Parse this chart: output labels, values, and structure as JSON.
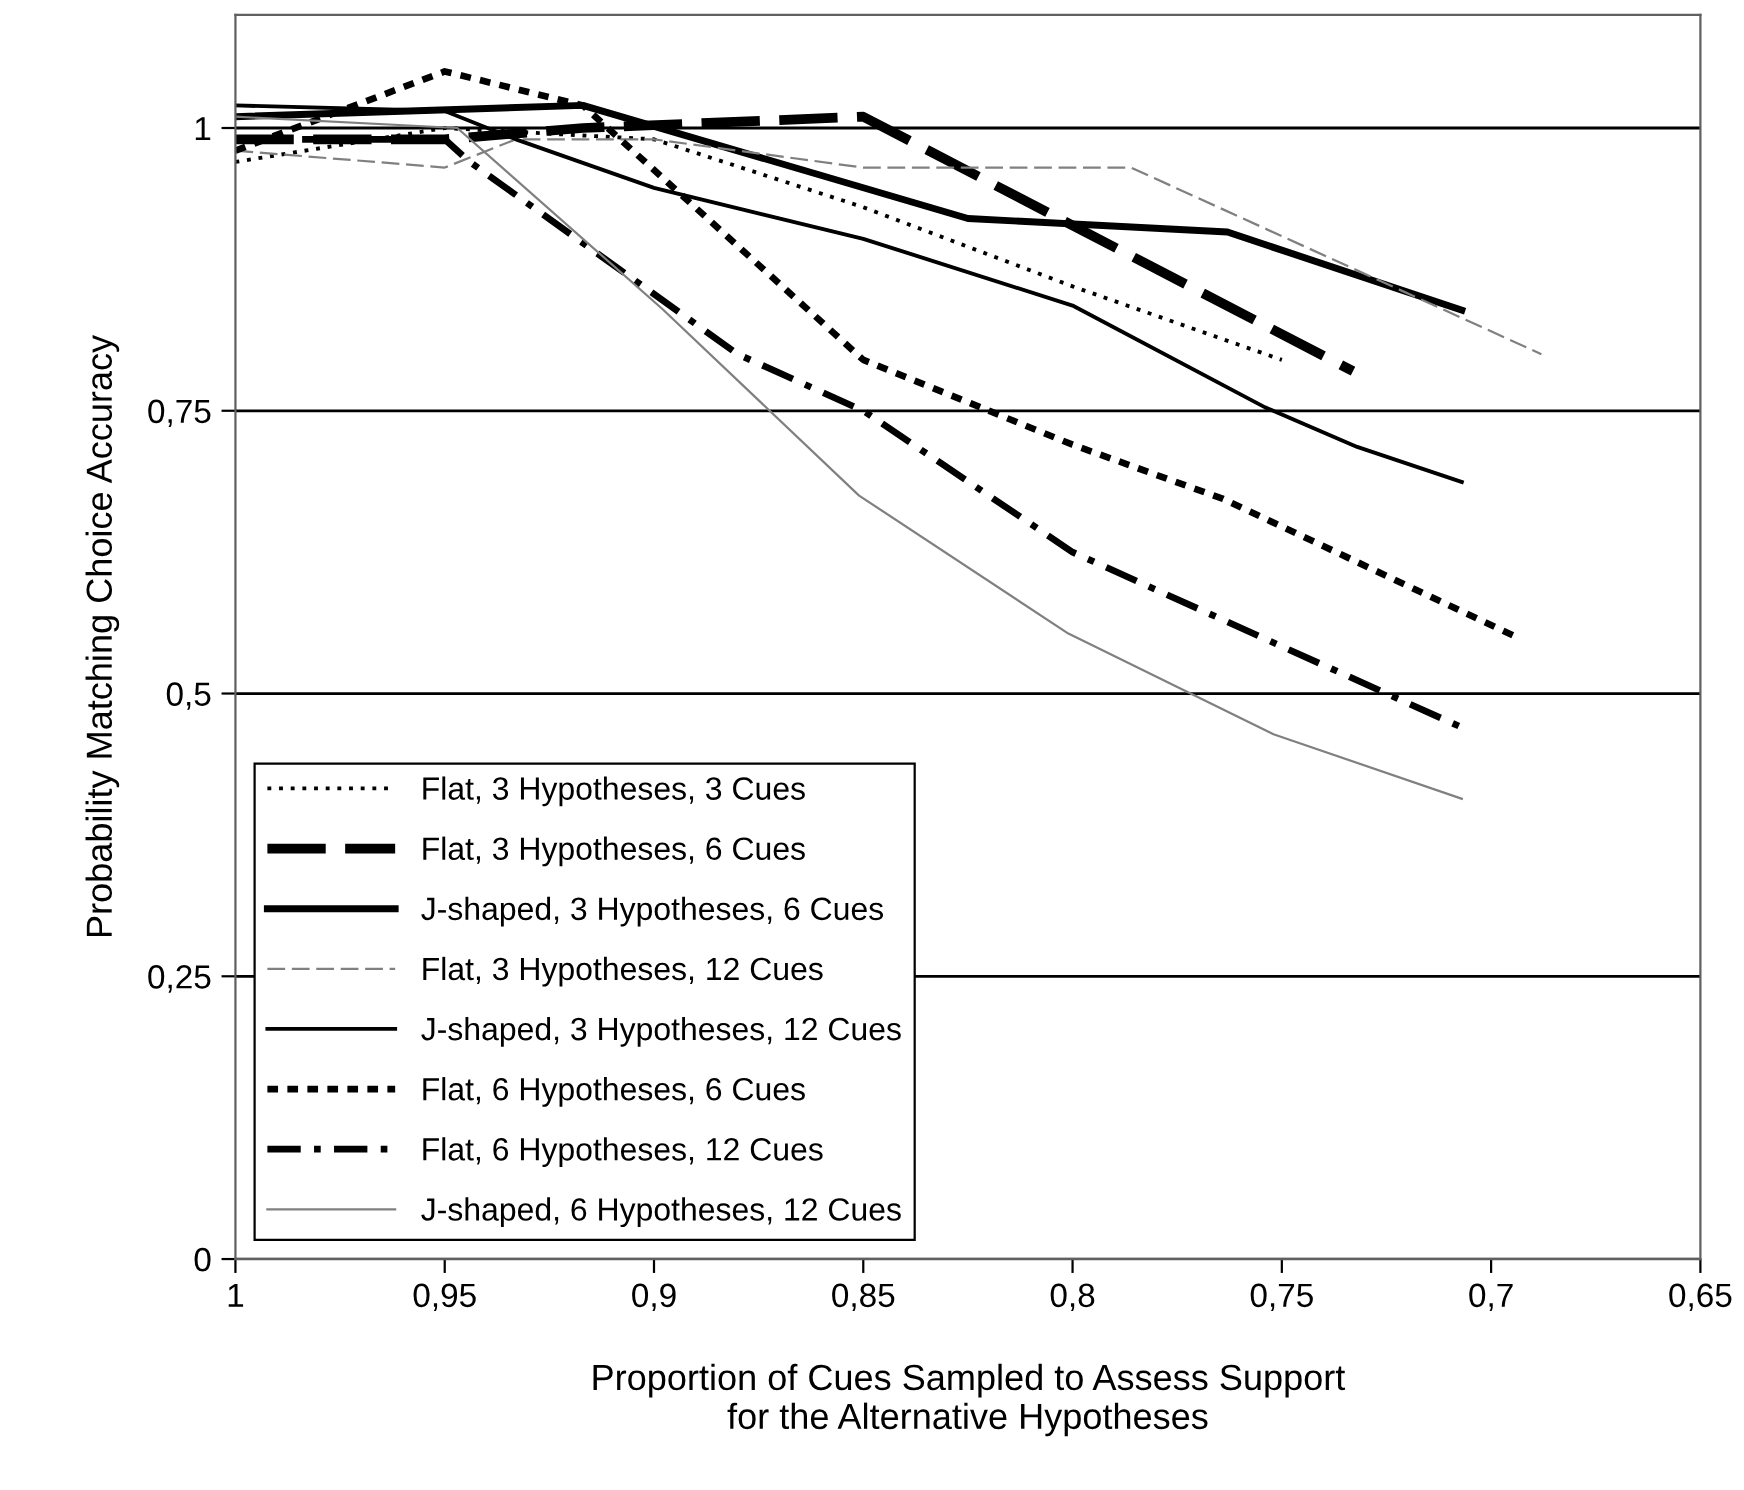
{
  "chart_data": {
    "type": "line",
    "xlabel": "Proportion of Cues Sampled to Assess Support\nfor the Alternative Hypotheses",
    "ylabel": "Probability Matching Choice Accuracy",
    "xlim": [
      1,
      0.65
    ],
    "xticks": [
      1,
      {
        "value": 0.95,
        "label": "0,95"
      },
      {
        "value": 0.9,
        "label": "0,9"
      },
      {
        "value": 0.85,
        "label": "0,85"
      },
      {
        "value": 0.8,
        "label": "0,8"
      },
      {
        "value": 0.75,
        "label": "0,75"
      },
      {
        "value": 0.7,
        "label": "0,7"
      },
      {
        "value": 0.65,
        "label": "0,65"
      }
    ],
    "ylim": [
      0,
      1.1
    ],
    "yticks": [
      0,
      {
        "value": 0.25,
        "label": "0,25"
      },
      {
        "value": 0.5,
        "label": "0,5"
      },
      {
        "value": 0.75,
        "label": "0,75"
      },
      1
    ],
    "grid": "y",
    "legend": "bottom left",
    "marker": "none",
    "series": [
      {
        "name": "Flat, 3 Hypotheses, 3 Cues",
        "color": "#000000",
        "line_style": "dotted",
        "x": [
          1,
          0.95,
          0.9,
          0.85,
          0.8,
          0.75
        ],
        "values": [
          0.97,
          1.0,
          0.99,
          0.93,
          0.86,
          0.795
        ]
      },
      {
        "name": "Flat, 3 Hypotheses, 6 Cues",
        "color": "#000000",
        "line_style": "dashed",
        "x": [
          1,
          0.95,
          0.917,
          0.85,
          0.733
        ],
        "values": [
          0.99,
          0.99,
          1.0,
          1.01,
          0.785
        ]
      },
      {
        "name": "J-shaped, 3 Hypotheses, 6 Cues",
        "color": "#000000",
        "line_style": "solid",
        "x": [
          1,
          0.917,
          0.825,
          0.763,
          0.707
        ],
        "values": [
          1.01,
          1.02,
          0.92,
          0.908,
          0.839
        ]
      },
      {
        "name": "Flat, 3 Hypotheses, 12 Cues",
        "color": "#808080",
        "line_style": "dashed",
        "x": [
          1,
          0.95,
          0.933,
          0.9,
          0.85,
          0.786,
          0.688
        ],
        "values": [
          0.98,
          0.965,
          0.99,
          0.99,
          0.965,
          0.965,
          0.8
        ]
      },
      {
        "name": "J-shaped, 3 Hypotheses, 12 Cues",
        "color": "#000000",
        "line_style": "solid",
        "x": [
          1,
          0.95,
          0.933,
          0.9,
          0.85,
          0.8,
          0.754,
          0.732,
          0.707
        ],
        "values": [
          1.02,
          1.015,
          0.99,
          0.947,
          0.902,
          0.843,
          0.753,
          0.718,
          0.687
        ]
      },
      {
        "name": "Flat, 6 Hypotheses, 6 Cues",
        "color": "#000000",
        "line_style": "dotted",
        "x": [
          1,
          0.95,
          0.917,
          0.85,
          0.8,
          0.764,
          0.694
        ],
        "values": [
          0.98,
          1.05,
          1.02,
          0.795,
          0.72,
          0.672,
          0.55
        ]
      },
      {
        "name": "Flat, 6 Hypotheses, 12 Cues",
        "color": "#000000",
        "line_style": "dashdot",
        "x": [
          1,
          0.95,
          0.944,
          0.88,
          0.85,
          0.8,
          0.707
        ],
        "values": [
          0.99,
          0.99,
          0.97,
          0.8,
          0.75,
          0.625,
          0.47
        ]
      },
      {
        "name": "J-shaped, 6 Hypotheses, 12 Cues",
        "color": "#808080",
        "line_style": "solid",
        "x": [
          1,
          0.947,
          0.898,
          0.851,
          0.801,
          0.752,
          0.707
        ],
        "values": [
          1.01,
          1.0,
          0.84,
          0.675,
          0.553,
          0.464,
          0.407
        ]
      }
    ]
  }
}
